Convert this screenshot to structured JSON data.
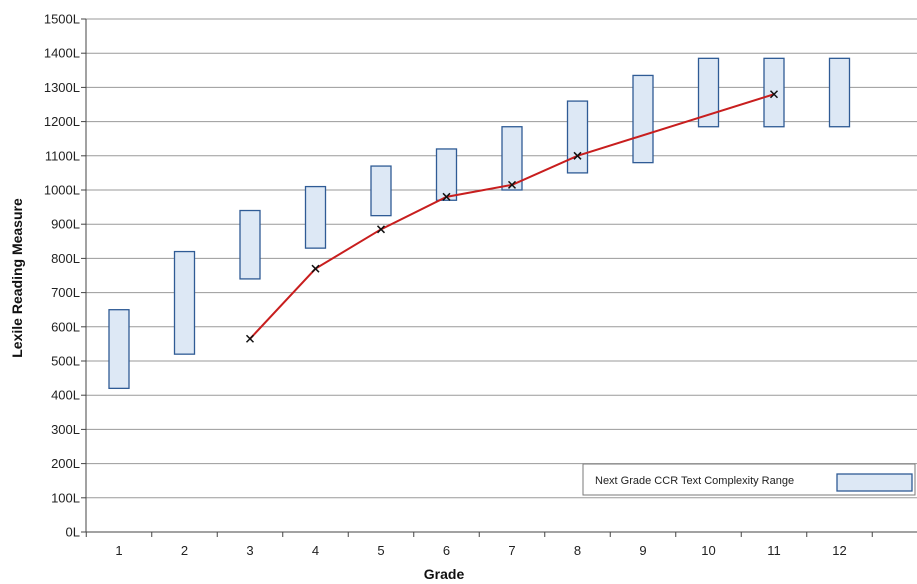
{
  "chart_data": {
    "type": "line",
    "title": "",
    "xlabel": "Grade",
    "ylabel": "Lexile Reading Measure",
    "categories": [
      "1",
      "2",
      "3",
      "4",
      "5",
      "6",
      "7",
      "8",
      "9",
      "10",
      "11",
      "12"
    ],
    "y_tick_labels": [
      "0L",
      "100L",
      "200L",
      "300L",
      "400L",
      "500L",
      "600L",
      "700L",
      "800L",
      "900L",
      "1000L",
      "1100L",
      "1200L",
      "1300L",
      "1400L",
      "1500L"
    ],
    "ylim": [
      0,
      1500
    ],
    "grid": true,
    "legend_position": "bottom-right",
    "series": [
      {
        "name": "Next Grade CCR Text Complexity Range",
        "type": "range",
        "low": [
          420,
          520,
          740,
          830,
          925,
          970,
          1000,
          1050,
          1080,
          1185,
          1185,
          1185
        ],
        "high": [
          650,
          820,
          940,
          1010,
          1070,
          1120,
          1185,
          1260,
          1335,
          1385,
          1385,
          1385
        ],
        "fill_color": "#dde8f5",
        "stroke_color": "#2f5b95"
      },
      {
        "type": "line",
        "x": [
          "3",
          "4",
          "5",
          "6",
          "7",
          "8",
          "11"
        ],
        "values": [
          565,
          770,
          885,
          980,
          1015,
          1100,
          1280
        ],
        "line_color": "#c81e1e",
        "marker": "x"
      }
    ]
  }
}
